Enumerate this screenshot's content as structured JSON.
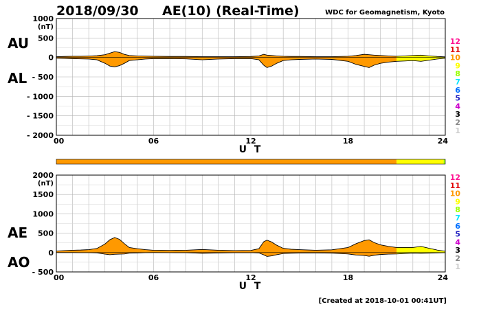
{
  "header": {
    "date": "2018/09/30",
    "title": "AE(10) (Real-Time)",
    "organization": "WDC for Geomagnetism, Kyoto"
  },
  "footer": {
    "created": "[Created at 2018-10-01 00:41UT]"
  },
  "stations_legend": [
    {
      "label": "12",
      "color": "#ff1493"
    },
    {
      "label": "11",
      "color": "#e00000"
    },
    {
      "label": "10",
      "color": "#ff9900"
    },
    {
      "label": "9",
      "color": "#ffff00"
    },
    {
      "label": "8",
      "color": "#99ff00"
    },
    {
      "label": "7",
      "color": "#00e5ff"
    },
    {
      "label": "6",
      "color": "#0070ff"
    },
    {
      "label": "5",
      "color": "#2020c0"
    },
    {
      "label": "4",
      "color": "#cc00cc"
    },
    {
      "label": "3",
      "color": "#000000"
    },
    {
      "label": "2",
      "color": "#888888"
    },
    {
      "label": "1",
      "color": "#cccccc"
    }
  ],
  "station_bar": {
    "segments": [
      {
        "from_hour": 0,
        "to_hour": 21,
        "stations": 10,
        "color": "#ff9900"
      },
      {
        "from_hour": 21,
        "to_hour": 23.9,
        "stations": 9,
        "color": "#ffff00"
      },
      {
        "from_hour": 23.9,
        "to_hour": 24,
        "stations": 8,
        "color": "#99ff00"
      }
    ]
  },
  "chart_data": [
    {
      "type": "area",
      "upper_label": "AU",
      "lower_label": "AL",
      "unit": "(nT)",
      "xlabel": "U T",
      "xlim": [
        0,
        24
      ],
      "ylim": [
        -2000,
        1000
      ],
      "x_ticks": [
        "00",
        "06",
        "12",
        "18",
        "24"
      ],
      "y_ticks": [
        "1000",
        "500",
        "0",
        "- 500",
        "- 1000",
        "- 1500",
        "- 2000"
      ],
      "grid": true,
      "series": [
        {
          "name": "AU",
          "x": [
            0,
            0.5,
            1,
            1.5,
            2,
            2.5,
            3,
            3.3,
            3.6,
            3.9,
            4.2,
            4.5,
            5,
            5.5,
            6,
            7,
            8,
            9,
            10,
            11,
            12,
            12.5,
            12.8,
            13,
            13.3,
            13.6,
            14,
            14.5,
            15,
            16,
            17,
            18,
            18.5,
            19,
            19.3,
            19.6,
            20,
            20.5,
            21,
            21.5,
            22,
            22.5,
            23,
            23.5,
            24
          ],
          "values": [
            20,
            25,
            30,
            30,
            35,
            45,
            70,
            110,
            150,
            130,
            80,
            50,
            40,
            35,
            30,
            25,
            25,
            20,
            20,
            20,
            25,
            40,
            80,
            60,
            50,
            40,
            30,
            25,
            25,
            20,
            20,
            30,
            50,
            80,
            70,
            60,
            50,
            40,
            30,
            40,
            50,
            60,
            40,
            25,
            15
          ]
        },
        {
          "name": "AL",
          "x": [
            0,
            0.5,
            1,
            1.5,
            2,
            2.5,
            3,
            3.3,
            3.6,
            3.9,
            4.2,
            4.5,
            5,
            5.5,
            6,
            7,
            8,
            9,
            10,
            11,
            12,
            12.5,
            12.8,
            13,
            13.3,
            13.6,
            14,
            14.5,
            15,
            16,
            17,
            18,
            18.5,
            19,
            19.3,
            19.6,
            20,
            20.5,
            21,
            21.5,
            22,
            22.5,
            23,
            23.5,
            24
          ],
          "values": [
            -20,
            -25,
            -30,
            -35,
            -40,
            -60,
            -150,
            -220,
            -240,
            -210,
            -150,
            -80,
            -60,
            -40,
            -30,
            -30,
            -35,
            -60,
            -40,
            -30,
            -30,
            -60,
            -200,
            -260,
            -220,
            -150,
            -80,
            -60,
            -50,
            -40,
            -50,
            -100,
            -180,
            -230,
            -260,
            -200,
            -150,
            -120,
            -100,
            -90,
            -80,
            -100,
            -70,
            -40,
            -20
          ]
        }
      ]
    },
    {
      "type": "area",
      "upper_label": "AE",
      "lower_label": "AO",
      "unit": "(nT)",
      "xlabel": "U T",
      "xlim": [
        0,
        24
      ],
      "ylim": [
        -500,
        2000
      ],
      "x_ticks": [
        "00",
        "06",
        "12",
        "18",
        "24"
      ],
      "y_ticks": [
        "2000",
        "1500",
        "1000",
        "500",
        "0",
        "- 500"
      ],
      "grid": true,
      "series": [
        {
          "name": "AE",
          "x": [
            0,
            0.5,
            1,
            1.5,
            2,
            2.5,
            3,
            3.3,
            3.6,
            3.9,
            4.2,
            4.5,
            5,
            5.5,
            6,
            7,
            8,
            9,
            10,
            11,
            12,
            12.5,
            12.8,
            13,
            13.3,
            13.6,
            14,
            14.5,
            15,
            16,
            17,
            18,
            18.5,
            19,
            19.3,
            19.6,
            20,
            20.5,
            21,
            21.5,
            22,
            22.5,
            23,
            23.5,
            24
          ],
          "values": [
            40,
            50,
            60,
            65,
            75,
            105,
            220,
            330,
            390,
            340,
            230,
            130,
            100,
            75,
            60,
            55,
            60,
            80,
            60,
            50,
            55,
            100,
            280,
            320,
            270,
            190,
            110,
            85,
            75,
            60,
            70,
            130,
            230,
            310,
            330,
            260,
            200,
            160,
            130,
            130,
            130,
            160,
            110,
            65,
            35
          ]
        },
        {
          "name": "AO",
          "x": [
            0,
            0.5,
            1,
            1.5,
            2,
            2.5,
            3,
            3.3,
            3.6,
            3.9,
            4.2,
            4.5,
            5,
            5.5,
            6,
            7,
            8,
            9,
            10,
            11,
            12,
            12.5,
            12.8,
            13,
            13.3,
            13.6,
            14,
            14.5,
            15,
            16,
            17,
            18,
            18.5,
            19,
            19.3,
            19.6,
            20,
            20.5,
            21,
            21.5,
            22,
            22.5,
            23,
            23.5,
            24
          ],
          "values": [
            0,
            0,
            0,
            -3,
            -3,
            -8,
            -40,
            -55,
            -45,
            -40,
            -35,
            -15,
            -10,
            -3,
            0,
            -3,
            -5,
            -20,
            -10,
            -5,
            -3,
            -10,
            -60,
            -100,
            -85,
            -55,
            -25,
            -18,
            -13,
            -10,
            -15,
            -35,
            -65,
            -75,
            -95,
            -70,
            -50,
            -40,
            -35,
            -25,
            -15,
            -20,
            -15,
            -8,
            -3
          ]
        }
      ]
    }
  ]
}
